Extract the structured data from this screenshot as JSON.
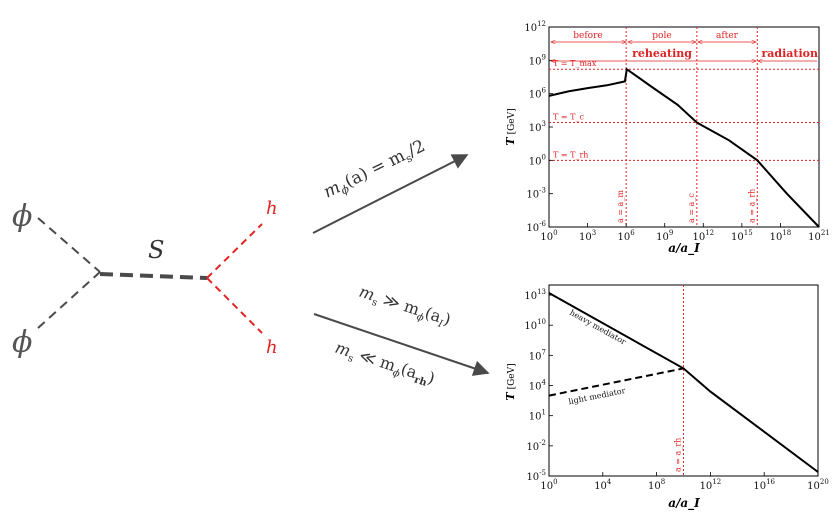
{
  "feynman": {
    "phi_top": "ϕ",
    "phi_bottom": "ϕ",
    "mediator": "S",
    "h_top": "h",
    "h_bottom": "h",
    "colors": {
      "line": "#4a4a4a",
      "higgs": "#e02424"
    }
  },
  "arrows": {
    "upper_label_parts": [
      "m",
      "ϕ",
      "(a) = m",
      "s",
      "/2"
    ],
    "lower_label1_parts": [
      "m",
      "s",
      " ≫ m",
      "ϕ",
      "(a",
      "I",
      ")"
    ],
    "lower_label2_parts": [
      "m",
      "s",
      " ≪ m",
      "ϕ",
      "(a",
      "rh",
      ")"
    ]
  },
  "chart_data": [
    {
      "type": "line",
      "xlabel": "a/a_I",
      "ylabel_main": "T",
      "ylabel_unit": "[GeV]",
      "x_scale": "log",
      "y_scale": "log",
      "xlim_exp": [
        0,
        21
      ],
      "ylim_exp": [
        -6,
        12
      ],
      "x_ticks": [
        "10^0",
        "10^3",
        "10^6",
        "10^9",
        "10^12",
        "10^15",
        "10^18",
        "10^21"
      ],
      "y_ticks": [
        "10^-6",
        "10^-3",
        "10^0",
        "10^3",
        "10^6",
        "10^9",
        "10^12"
      ],
      "series": [
        {
          "style": "solid",
          "color": "#000000",
          "points_log10": [
            [
              0,
              5.8
            ],
            [
              1.5,
              6.2
            ],
            [
              3,
              6.5
            ],
            [
              4.5,
              6.75
            ],
            [
              5.9,
              7.1
            ],
            [
              6.05,
              8.2
            ],
            [
              8,
              6.6
            ],
            [
              10,
              5.0
            ],
            [
              11.5,
              3.4
            ],
            [
              14,
              1.8
            ],
            [
              16.2,
              0
            ],
            [
              18.5,
              -3
            ],
            [
              21,
              -6
            ]
          ]
        }
      ],
      "vlines": [
        {
          "x_exp": 6,
          "label": "a = a_m"
        },
        {
          "x_exp": 11.5,
          "label": "a = a_c"
        },
        {
          "x_exp": 16.2,
          "label": "a = a_rh"
        }
      ],
      "hlines": [
        {
          "y_exp": 8.2,
          "label": "T = T_max"
        },
        {
          "y_exp": 3.4,
          "label": "T = T_c"
        },
        {
          "y_exp": 0,
          "label": "T = T_rh"
        }
      ],
      "phase_labels": [
        "before",
        "pole",
        "after"
      ],
      "era_labels": [
        "reheating",
        "radiation"
      ],
      "accent": "#e02424"
    },
    {
      "type": "line",
      "xlabel": "a/a_I",
      "ylabel_main": "T",
      "ylabel_unit": "[GeV]",
      "x_scale": "log",
      "y_scale": "log",
      "xlim_exp": [
        0,
        20
      ],
      "ylim_exp": [
        -5,
        14
      ],
      "x_ticks": [
        "10^0",
        "10^4",
        "10^8",
        "10^12",
        "10^16",
        "10^20"
      ],
      "y_ticks": [
        "10^-5",
        "10^-2",
        "10^1",
        "10^4",
        "10^7",
        "10^10",
        "10^13"
      ],
      "series": [
        {
          "name": "heavy mediator",
          "style": "solid",
          "color": "#000000",
          "points_log10": [
            [
              0,
              13.2
            ],
            [
              10,
              5.7
            ],
            [
              12,
              3.4
            ],
            [
              20,
              -4.6
            ]
          ]
        },
        {
          "name": "light mediator",
          "style": "dashed",
          "color": "#000000",
          "points_log10": [
            [
              0,
              3.0
            ],
            [
              10,
              5.7
            ]
          ]
        }
      ],
      "vlines": [
        {
          "x_exp": 10,
          "label": "a = a_rh"
        }
      ],
      "accent": "#e02424"
    }
  ]
}
